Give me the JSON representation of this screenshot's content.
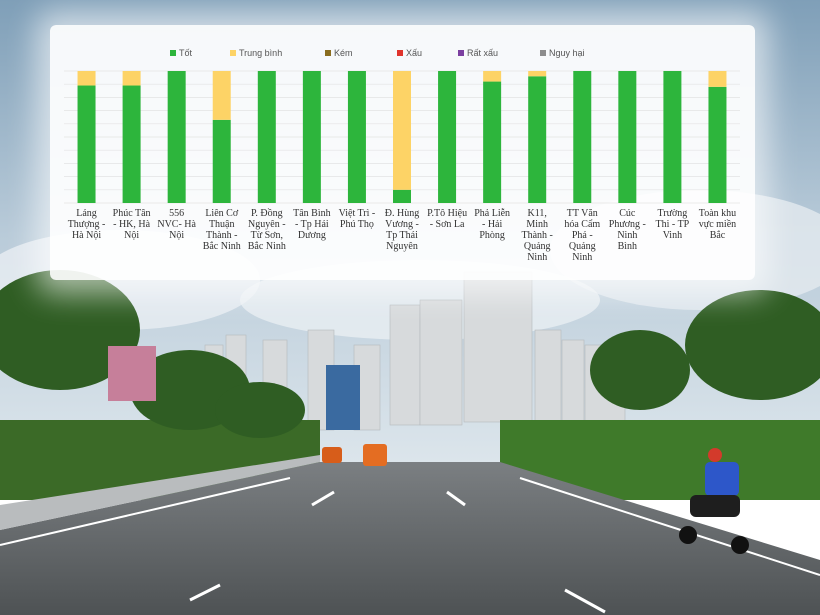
{
  "chart_data": {
    "type": "bar",
    "stacked": true,
    "percent": true,
    "title": "",
    "xlabel": "",
    "ylabel": "",
    "ylim": [
      0,
      100
    ],
    "grid": true,
    "legend_position": "top",
    "categories": [
      "Láng Thượng - Hà Nội",
      "Phúc Tân - HK, Hà Nội",
      "556 NVC- Hà Nội",
      "Liên Cơ Thuận Thành - Bắc Ninh",
      "P. Đồng Nguyên - Từ Sơn, Bắc Ninh",
      "Tân Bình - Tp Hải Dương",
      "Việt Trì - Phú Thọ",
      "Đ. Hùng Vương - Tp Thái Nguyên",
      "P.Tô Hiệu - Sơn La",
      "Phả Liễn - Hải Phòng",
      "K11, Minh Thành - Quảng Ninh",
      "TT Văn hóa Cẩm Phả - Quảng Ninh",
      "Cúc Phương - Ninh Bình",
      "Trường Thi - TP Vinh",
      "Toàn khu vực miền Bắc"
    ],
    "series": [
      {
        "name": "Tốt",
        "color": "#2db53c",
        "values": [
          89,
          89,
          100,
          63,
          100,
          100,
          100,
          10,
          100,
          92,
          96,
          100,
          100,
          100,
          88
        ]
      },
      {
        "name": "Trung bình",
        "color": "#fdd366",
        "values": [
          11,
          11,
          0,
          37,
          0,
          0,
          0,
          90,
          0,
          8,
          4,
          0,
          0,
          0,
          12
        ]
      },
      {
        "name": "Kém",
        "color": "#8a6d1f",
        "values": [
          0,
          0,
          0,
          0,
          0,
          0,
          0,
          0,
          0,
          0,
          0,
          0,
          0,
          0,
          0
        ]
      },
      {
        "name": "Xấu",
        "color": "#e0342c",
        "values": [
          0,
          0,
          0,
          0,
          0,
          0,
          0,
          0,
          0,
          0,
          0,
          0,
          0,
          0,
          0
        ]
      },
      {
        "name": "Rất xấu",
        "color": "#7b3fa0",
        "values": [
          0,
          0,
          0,
          0,
          0,
          0,
          0,
          0,
          0,
          0,
          0,
          0,
          0,
          0,
          0
        ]
      },
      {
        "name": "Nguy hại",
        "color": "#8c8c8c",
        "values": [
          0,
          0,
          0,
          0,
          0,
          0,
          0,
          0,
          0,
          0,
          0,
          0,
          0,
          0,
          0
        ]
      }
    ]
  },
  "tick_labels": [
    [
      "Láng",
      "Thượng -",
      "Hà Nội"
    ],
    [
      "Phúc Tân",
      "- HK, Hà",
      "Nội"
    ],
    [
      "556",
      "NVC- Hà",
      "Nội"
    ],
    [
      "Liên Cơ",
      "Thuận",
      "Thành -",
      "Bắc Ninh"
    ],
    [
      "P. Đồng",
      "Nguyên -",
      "Từ Sơn,",
      "Bắc Ninh"
    ],
    [
      "Tân Bình",
      "- Tp Hải",
      "Dương"
    ],
    [
      "Việt Trì -",
      "Phú Thọ"
    ],
    [
      "Đ. Hùng",
      "Vương -",
      "Tp Thái",
      "Nguyên"
    ],
    [
      "P.Tô Hiệu",
      "- Sơn La"
    ],
    [
      "Phả Liễn",
      "- Hải",
      "Phòng"
    ],
    [
      "K11,",
      "Minh",
      "Thành -",
      "Quảng",
      "Ninh"
    ],
    [
      "TT Văn",
      "hóa Cẩm",
      "Phả -",
      "Quảng",
      "Ninh"
    ],
    [
      "Cúc",
      "Phương -",
      "Ninh",
      "Bình"
    ],
    [
      "Trường",
      "Thi - TP",
      "Vinh"
    ],
    [
      "Toàn khu",
      "vực miền",
      "Bắc"
    ]
  ],
  "background_photo": {
    "sky_color": "#8fb2cf",
    "road_color": "#5f6366",
    "vegetation_color": "#3f6b2a"
  }
}
